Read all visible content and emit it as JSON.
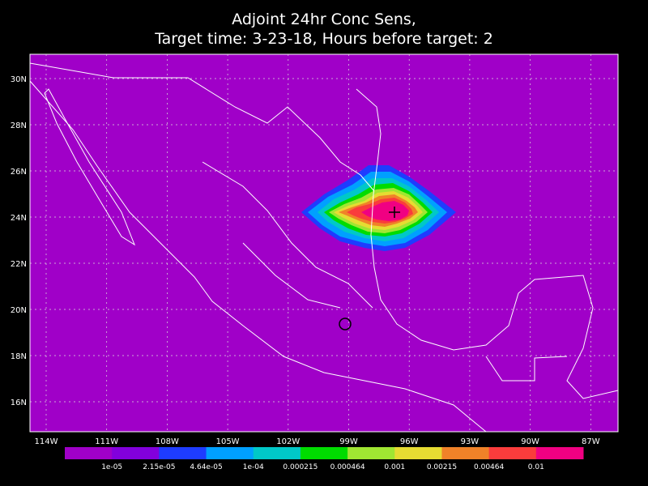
{
  "title": [
    "Adjoint 24hr Conc Sens,",
    "Target time: 3-23-18, Hours before target: 2"
  ],
  "lat_labels": [
    "30N",
    "28N",
    "26N",
    "24N",
    "22N",
    "20N",
    "18N",
    "16N"
  ],
  "lon_labels": [
    "114W",
    "111W",
    "108W",
    "105W",
    "102W",
    "99W",
    "96W",
    "93W",
    "90W",
    "87W"
  ],
  "colorbar": {
    "colors": [
      "#a000c8",
      "#8200dc",
      "#1e3cff",
      "#00a0ff",
      "#00c8c8",
      "#00dc00",
      "#a0e632",
      "#e6dc32",
      "#f08228",
      "#fa3c3c",
      "#f00082"
    ],
    "labels": [
      "1e-05",
      "2.15e-05",
      "4.64e-05",
      "1e-04",
      "0.000215",
      "0.000464",
      "0.001",
      "0.00215",
      "0.00464",
      "0.01"
    ]
  }
}
